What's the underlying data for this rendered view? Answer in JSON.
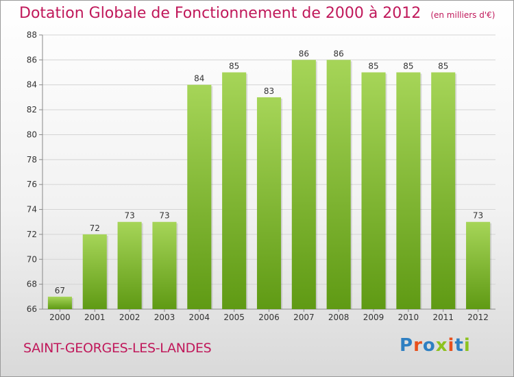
{
  "header": {
    "title": "Dotation Globale de Fonctionnement de 2000 à 2012",
    "subtitle": "(en milliers d'€)"
  },
  "footer": {
    "commune": "SAINT-GEORGES-LES-LANDES",
    "logo": "Proxiti"
  },
  "colors": {
    "title": "#c0185a",
    "bar_light": "#a6d558",
    "bar_dark": "#5f9a14",
    "logo": [
      "#2e7fc2",
      "#e8501c",
      "#2e7fc2",
      "#8dc21f",
      "#e8501c",
      "#2e7fc2",
      "#8dc21f"
    ]
  },
  "chart_data": {
    "type": "bar",
    "categories": [
      "2000",
      "2001",
      "2002",
      "2003",
      "2004",
      "2005",
      "2006",
      "2007",
      "2008",
      "2009",
      "2010",
      "2011",
      "2012"
    ],
    "values": [
      67,
      72,
      73,
      73,
      84,
      85,
      83,
      86,
      86,
      85,
      85,
      85,
      73
    ],
    "ylim": [
      66,
      88
    ],
    "yticks": [
      66,
      68,
      70,
      72,
      74,
      76,
      78,
      80,
      82,
      84,
      86,
      88
    ],
    "grid": true,
    "data_labels": true
  }
}
